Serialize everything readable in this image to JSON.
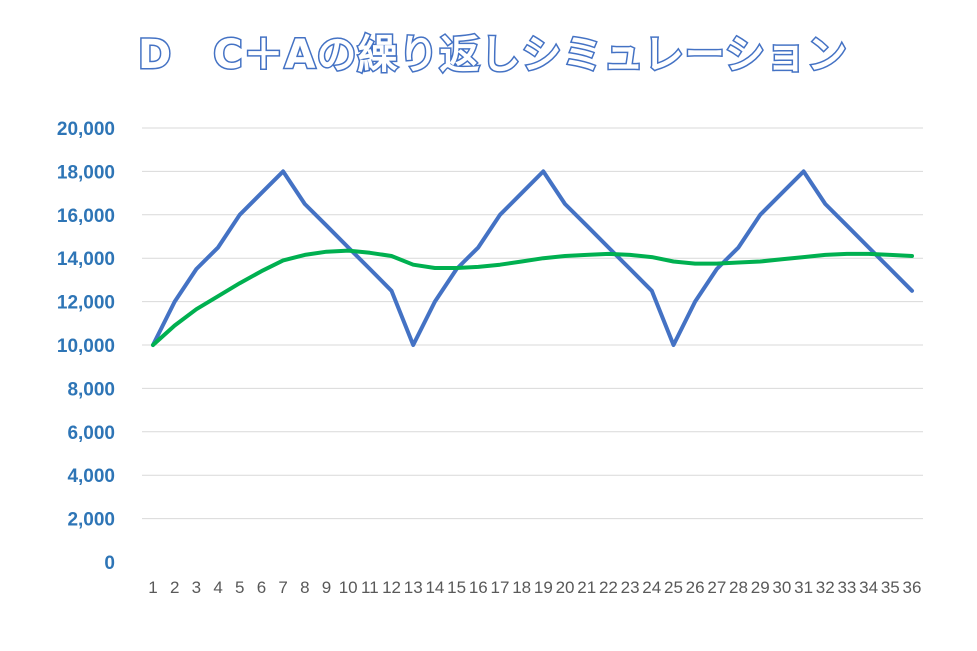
{
  "chart_data": {
    "type": "line",
    "title": "D　C＋Aの繰り返しシミュレーション",
    "xlabel": "",
    "ylabel": "",
    "ylim": [
      0,
      20000
    ],
    "ytick_labels": [
      "0",
      "2,000",
      "4,000",
      "6,000",
      "8,000",
      "10,000",
      "12,000",
      "14,000",
      "16,000",
      "18,000",
      "20,000"
    ],
    "x": [
      1,
      2,
      3,
      4,
      5,
      6,
      7,
      8,
      9,
      10,
      11,
      12,
      13,
      14,
      15,
      16,
      17,
      18,
      19,
      20,
      21,
      22,
      23,
      24,
      25,
      26,
      27,
      28,
      29,
      30,
      31,
      32,
      33,
      34,
      35,
      36
    ],
    "grid": true,
    "legend": "none",
    "series": [
      {
        "color": "#4472c4",
        "values": [
          10000,
          12000,
          13500,
          14500,
          16000,
          17000,
          18000,
          16500,
          15500,
          14500,
          13500,
          12500,
          10000,
          12000,
          13500,
          14500,
          16000,
          17000,
          18000,
          16500,
          15500,
          14500,
          13500,
          12500,
          10000,
          12000,
          13500,
          14500,
          16000,
          17000,
          18000,
          16500,
          15500,
          14500,
          13500,
          12500
        ]
      },
      {
        "color": "#00b050",
        "values": [
          10000,
          10900,
          11650,
          12250,
          12850,
          13400,
          13900,
          14150,
          14300,
          14350,
          14250,
          14100,
          13700,
          13550,
          13550,
          13600,
          13700,
          13850,
          14000,
          14100,
          14150,
          14200,
          14150,
          14050,
          13850,
          13750,
          13750,
          13800,
          13850,
          13950,
          14050,
          14150,
          14200,
          14200,
          14150,
          14100
        ]
      }
    ]
  }
}
